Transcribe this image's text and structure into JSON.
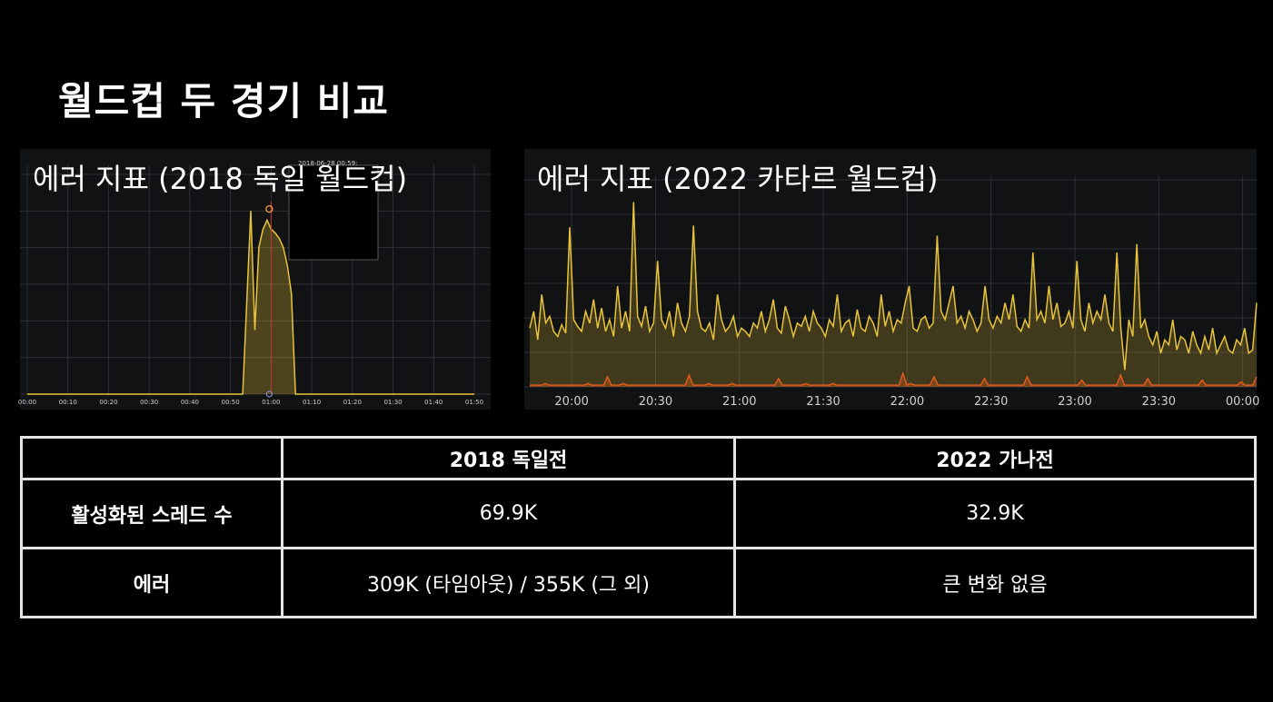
{
  "slide": {
    "title": "월드컵 두 경기 비교"
  },
  "left_panel": {
    "title": "에러 지표 (2018 독일 월드컵)",
    "tooltip_text": "2018-06-28 00:59:"
  },
  "right_panel": {
    "title": "에러 지표 (2022 카타르 월드컵)"
  },
  "chart_data": [
    {
      "type": "area",
      "title": "에러 지표 (2018 독일 월드컵)",
      "x_tick_labels": [
        "00:00",
        "00:10",
        "00:20",
        "00:30",
        "00:40",
        "00:50",
        "01:00",
        "01:10",
        "01:20",
        "01:30",
        "01:40",
        "01:50"
      ],
      "x": [
        "00:00",
        "00:50",
        "00:53",
        "00:55",
        "00:56",
        "00:57",
        "00:58",
        "00:59",
        "01:00",
        "01:01",
        "01:02",
        "01:03",
        "01:04",
        "01:05",
        "01:06",
        "01:50"
      ],
      "series": [
        {
          "color": "#e8c43a",
          "values": [
            0,
            0,
            0,
            1.0,
            0.35,
            0.8,
            0.9,
            0.95,
            0.9,
            0.88,
            0.85,
            0.8,
            0.7,
            0.55,
            0,
            0
          ]
        }
      ],
      "ylim": [
        0,
        1.1
      ],
      "grid": true,
      "marker_time": "01:00"
    },
    {
      "type": "area",
      "title": "에러 지표 (2022 카타르 월드컵)",
      "x_tick_labels": [
        "20:00",
        "20:30",
        "21:00",
        "21:30",
        "22:00",
        "22:30",
        "23:00",
        "23:30",
        "00:00"
      ],
      "x_range": [
        "19:45",
        "00:05"
      ],
      "series": [
        {
          "color": "#e8c43a",
          "values": [
            0.35,
            0.45,
            0.28,
            0.55,
            0.38,
            0.42,
            0.33,
            0.3,
            0.37,
            0.32,
            0.95,
            0.4,
            0.36,
            0.33,
            0.45,
            0.38,
            0.52,
            0.35,
            0.47,
            0.33,
            0.4,
            0.3,
            0.6,
            0.35,
            0.45,
            0.33,
            1.1,
            0.42,
            0.36,
            0.48,
            0.33,
            0.38,
            0.75,
            0.4,
            0.35,
            0.45,
            0.3,
            0.5,
            0.38,
            0.33,
            0.42,
            0.96,
            0.45,
            0.35,
            0.33,
            0.38,
            0.28,
            0.55,
            0.4,
            0.33,
            0.36,
            0.42,
            0.3,
            0.35,
            0.33,
            0.3,
            0.38,
            0.35,
            0.45,
            0.33,
            0.4,
            0.52,
            0.35,
            0.32,
            0.48,
            0.4,
            0.3,
            0.38,
            0.36,
            0.42,
            0.33,
            0.45,
            0.38,
            0.35,
            0.3,
            0.4,
            0.36,
            0.55,
            0.33,
            0.38,
            0.4,
            0.3,
            0.46,
            0.35,
            0.33,
            0.42,
            0.38,
            0.3,
            0.55,
            0.36,
            0.45,
            0.33,
            0.4,
            0.38,
            0.5,
            0.6,
            0.35,
            0.33,
            0.4,
            0.42,
            0.35,
            0.38,
            0.9,
            0.45,
            0.4,
            0.5,
            0.6,
            0.38,
            0.42,
            0.35,
            0.45,
            0.4,
            0.33,
            0.38,
            0.6,
            0.4,
            0.35,
            0.42,
            0.38,
            0.5,
            0.4,
            0.55,
            0.36,
            0.33,
            0.4,
            0.35,
            0.8,
            0.4,
            0.45,
            0.38,
            0.6,
            0.4,
            0.5,
            0.36,
            0.38,
            0.45,
            0.35,
            0.75,
            0.4,
            0.33,
            0.5,
            0.38,
            0.45,
            0.4,
            0.55,
            0.38,
            0.33,
            0.8,
            0.35,
            0.1,
            0.4,
            0.3,
            0.85,
            0.35,
            0.4,
            0.3,
            0.25,
            0.33,
            0.2,
            0.28,
            0.25,
            0.4,
            0.22,
            0.3,
            0.28,
            0.2,
            0.33,
            0.25,
            0.2,
            0.3,
            0.22,
            0.35,
            0.2,
            0.25,
            0.3,
            0.22,
            0.2,
            0.28,
            0.25,
            0.35,
            0.2,
            0.22,
            0.5
          ]
        },
        {
          "color": "#e05a1e",
          "values": [
            0.01,
            0.01,
            0.01,
            0.01,
            0.02,
            0.01,
            0.01,
            0.01,
            0.01,
            0.01,
            0.01,
            0.01,
            0.01,
            0.01,
            0.01,
            0.02,
            0.01,
            0.01,
            0.01,
            0.01,
            0.06,
            0.01,
            0.01,
            0.01,
            0.02,
            0.01,
            0.01,
            0.01,
            0.01,
            0.01,
            0.01,
            0.01,
            0.01,
            0.01,
            0.01,
            0.01,
            0.01,
            0.01,
            0.01,
            0.01,
            0.01,
            0.07,
            0.01,
            0.01,
            0.01,
            0.01,
            0.02,
            0.01,
            0.01,
            0.01,
            0.01,
            0.01,
            0.02,
            0.01,
            0.01,
            0.01,
            0.01,
            0.01,
            0.01,
            0.01,
            0.01,
            0.01,
            0.01,
            0.01,
            0.05,
            0.01,
            0.01,
            0.01,
            0.01,
            0.01,
            0.01,
            0.02,
            0.01,
            0.01,
            0.01,
            0.01,
            0.01,
            0.01,
            0.02,
            0.01,
            0.01,
            0.01,
            0.01,
            0.01,
            0.01,
            0.01,
            0.01,
            0.01,
            0.01,
            0.01,
            0.01,
            0.01,
            0.01,
            0.01,
            0.01,
            0.01,
            0.08,
            0.01,
            0.02,
            0.01,
            0.01,
            0.01,
            0.01,
            0.01,
            0.06,
            0.01,
            0.01,
            0.01,
            0.01,
            0.01,
            0.01,
            0.01,
            0.01,
            0.01,
            0.01,
            0.01,
            0.01,
            0.05,
            0.01,
            0.01,
            0.01,
            0.01,
            0.01,
            0.01,
            0.01,
            0.01,
            0.01,
            0.01,
            0.06,
            0.01,
            0.01,
            0.01,
            0.01,
            0.01,
            0.01,
            0.01,
            0.01,
            0.01,
            0.01,
            0.01,
            0.01,
            0.01,
            0.04,
            0.01,
            0.01,
            0.01,
            0.01,
            0.01,
            0.01,
            0.01,
            0.01,
            0.01,
            0.07,
            0.01,
            0.01,
            0.01,
            0.01,
            0.01,
            0.01,
            0.05,
            0.01,
            0.01,
            0.01,
            0.01,
            0.01,
            0.01,
            0.01,
            0.01,
            0.01,
            0.01,
            0.01,
            0.01,
            0.01,
            0.04,
            0.01,
            0.01,
            0.01,
            0.01,
            0.01,
            0.01,
            0.01,
            0.01,
            0.01,
            0.03,
            0.01,
            0.01,
            0.01,
            0.06
          ]
        }
      ],
      "ylim": [
        0,
        1.2
      ],
      "grid": true
    }
  ],
  "table": {
    "headers": [
      "",
      "2018 독일전",
      "2022 가나전"
    ],
    "rows": [
      {
        "label": "활성화된 스레드 수",
        "values": [
          "69.9K",
          "32.9K"
        ]
      },
      {
        "label": "에러",
        "values": [
          "309K (타임아웃) / 355K (그 외)",
          "큰 변화 없음"
        ]
      }
    ]
  }
}
